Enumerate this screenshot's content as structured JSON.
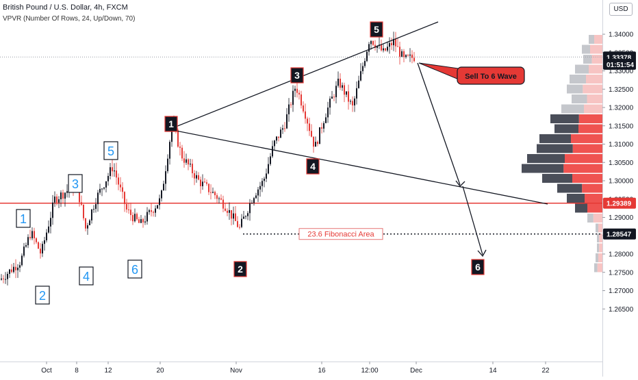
{
  "header": {
    "symbol_line": "British Pound / U.S. Dollar, 4h, FXCM",
    "indicator_line": "VPVR (Number Of Rows, 24, Up/Down, 70)"
  },
  "currency_button": "USD",
  "chart_data": {
    "type": "candlestick",
    "ylim": [
      1.262,
      1.348
    ],
    "y_ticks": [
      "1.34000",
      "1.33500",
      "1.33000",
      "1.32500",
      "1.32000",
      "1.31500",
      "1.31000",
      "1.30500",
      "1.30000",
      "1.29500",
      "1.29000",
      "1.28500",
      "1.28000",
      "1.27500",
      "1.27000",
      "1.26500"
    ],
    "x_ticks": [
      "Oct",
      "8",
      "12",
      "20",
      "Nov",
      "16",
      "12:00",
      "Dec",
      "14",
      "22"
    ],
    "price_labels": [
      {
        "text": "1.33378",
        "value": 1.33378,
        "bg": "#131722"
      },
      {
        "text": "01:51:54",
        "value": 1.3318,
        "bg": "#131722"
      },
      {
        "text": "1.29389",
        "value": 1.29389,
        "bg": "#e53935"
      },
      {
        "text": "1.28547",
        "value": 1.28547,
        "bg": "#131722"
      }
    ],
    "horizontal_line": {
      "value": 1.29389,
      "color": "#e53935"
    },
    "dotted_level": {
      "value": 1.28547,
      "label": "23.6 Fibonacci Area"
    },
    "wave_labels_blue": [
      "1",
      "2",
      "3",
      "4",
      "5",
      "6"
    ],
    "wave_labels_black": [
      "1",
      "2",
      "3",
      "4",
      "5",
      "6"
    ],
    "callout": "Sell To 6 Wave",
    "colors": {
      "up": "#131722",
      "down": "#e53935",
      "blue_label": "#2196f3",
      "vp_up": "#131722",
      "vp_down": "#ef5350"
    }
  }
}
